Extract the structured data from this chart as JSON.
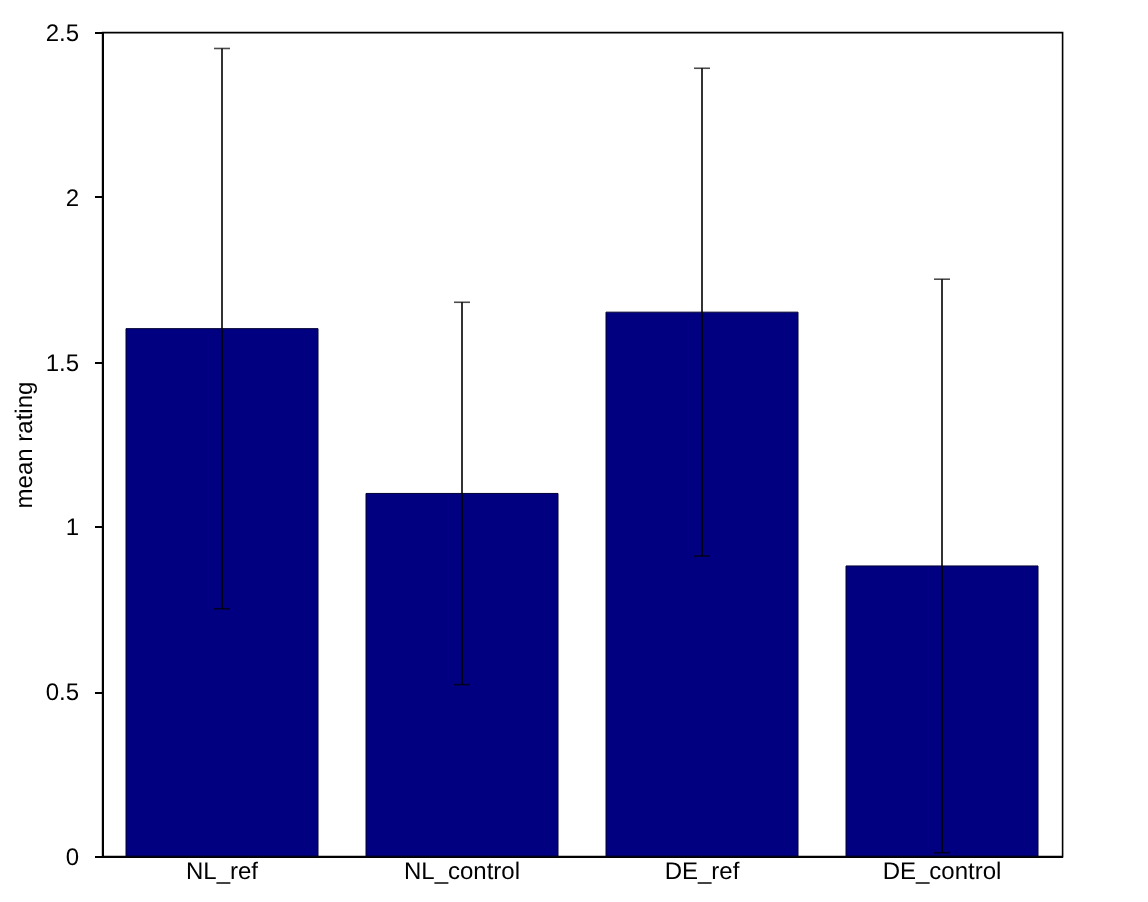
{
  "chart_data": {
    "type": "bar",
    "ylabel": "mean rating",
    "categories": [
      "NL_ref",
      "NL_control",
      "DE_ref",
      "DE_control"
    ],
    "values": [
      1.6,
      1.1,
      1.65,
      0.88
    ],
    "errors": [
      0.85,
      0.58,
      0.74,
      0.87
    ],
    "color": "#000080",
    "ylim": [
      0,
      2.5
    ],
    "yticks": [
      0,
      0.5,
      1,
      1.5,
      2,
      2.5
    ],
    "grid": false
  }
}
